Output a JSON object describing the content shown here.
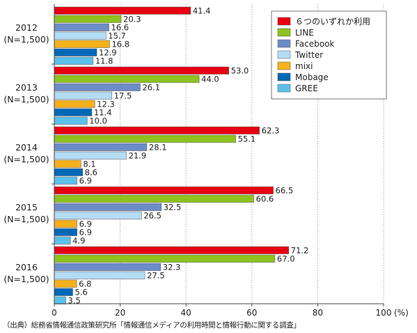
{
  "chart_data": {
    "type": "bar",
    "orientation": "horizontal",
    "categories": [
      {
        "year": "2012",
        "n": "(N=1,500)"
      },
      {
        "year": "2013",
        "n": "(N=1,500)"
      },
      {
        "year": "2014",
        "n": "(N=1,500)"
      },
      {
        "year": "2015",
        "n": "(N=1,500)"
      },
      {
        "year": "2016",
        "n": "(N=1,500)"
      }
    ],
    "series": [
      {
        "name": "６つのいずれか利用",
        "color": "#e60012",
        "values": [
          41.4,
          53.0,
          62.3,
          66.5,
          71.2
        ]
      },
      {
        "name": "LINE",
        "color": "#8dc21f",
        "values": [
          20.3,
          44.0,
          55.1,
          60.6,
          67.0
        ]
      },
      {
        "name": "Facebook",
        "color": "#6c8cc8",
        "values": [
          16.6,
          26.1,
          28.1,
          32.5,
          32.3
        ]
      },
      {
        "name": "Twitter",
        "color": "#b3dcf5",
        "values": [
          15.7,
          17.5,
          21.9,
          26.5,
          27.5
        ]
      },
      {
        "name": "mixi",
        "color": "#f5b11a",
        "values": [
          16.8,
          12.3,
          8.1,
          6.9,
          6.8
        ]
      },
      {
        "name": "Mobage",
        "color": "#0068b7",
        "values": [
          12.9,
          11.4,
          8.6,
          6.9,
          5.6
        ]
      },
      {
        "name": "GREE",
        "color": "#5bc0ec",
        "values": [
          11.8,
          10.0,
          6.9,
          4.9,
          3.5
        ]
      }
    ],
    "value_labels": [
      [
        "41.4",
        "53.0",
        "62.3",
        "66.5",
        "71.2"
      ],
      [
        "20.3",
        "44.0",
        "55.1",
        "60.6",
        "67.0"
      ],
      [
        "16.6",
        "26.1",
        "28.1",
        "32.5",
        "32.3"
      ],
      [
        "15.7",
        "17.5",
        "21.9",
        "26.5",
        "27.5"
      ],
      [
        "16.8",
        "12.3",
        "8.1",
        "6.9",
        "6.8"
      ],
      [
        "12.9",
        "11.4",
        "8.6",
        "6.9",
        "5.6"
      ],
      [
        "11.8",
        "10.0",
        "6.9",
        "4.9",
        "3.5"
      ]
    ],
    "xlim": [
      0,
      100
    ],
    "xticks": [
      "0",
      "20",
      "40",
      "60",
      "80",
      "100"
    ],
    "x_unit": "(%)",
    "grid": "vertical dotted",
    "legend_position": "top-right"
  },
  "source_note": "（出典）総務省情報通信政策研究所「情報通信メディアの利用時間と情報行動に関する調査」"
}
